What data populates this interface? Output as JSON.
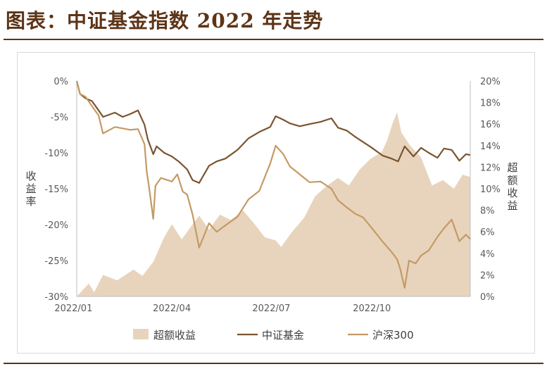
{
  "header": {
    "title": "图表：中证基金指数 2022 年走势"
  },
  "chart_data": {
    "type": "line",
    "title": "图表：中证基金指数 2022 年走势",
    "ylabel_left": "收益率",
    "ylabel_right": "超额收益",
    "x_ticks": [
      "2022/01",
      "2022/04",
      "2022/07",
      "2022/10"
    ],
    "x_range": [
      "2022-01-04",
      "2022-12-30"
    ],
    "ylim_left": [
      -30,
      0
    ],
    "ylim_right": [
      0,
      20
    ],
    "y_ticks_left": [
      "0%",
      "-5%",
      "-10%",
      "-15%",
      "-20%",
      "-25%",
      "-30%"
    ],
    "y_ticks_right": [
      "20%",
      "18%",
      "16%",
      "14%",
      "12%",
      "10%",
      "8%",
      "6%",
      "4%",
      "2%",
      "0%"
    ],
    "legend_position": "bottom",
    "colors": {
      "excess": "#e8d4bd",
      "fund": "#7a5430",
      "csi300": "#c49a64"
    },
    "series": [
      {
        "name": "超额收益",
        "kind": "area",
        "axis": "right",
        "points": [
          [
            "2022-01-04",
            0.0
          ],
          [
            "2022-01-15",
            1.2
          ],
          [
            "2022-01-20",
            0.4
          ],
          [
            "2022-01-28",
            2.0
          ],
          [
            "2022-02-10",
            1.5
          ],
          [
            "2022-02-25",
            2.5
          ],
          [
            "2022-03-05",
            1.9
          ],
          [
            "2022-03-15",
            3.2
          ],
          [
            "2022-03-25",
            5.5
          ],
          [
            "2022-04-01",
            6.7
          ],
          [
            "2022-04-10",
            5.3
          ],
          [
            "2022-04-20",
            6.7
          ],
          [
            "2022-04-26",
            7.5
          ],
          [
            "2022-05-05",
            6.2
          ],
          [
            "2022-05-15",
            7.6
          ],
          [
            "2022-05-25",
            7.1
          ],
          [
            "2022-06-05",
            8.0
          ],
          [
            "2022-06-15",
            6.8
          ],
          [
            "2022-06-25",
            5.5
          ],
          [
            "2022-07-05",
            5.2
          ],
          [
            "2022-07-10",
            4.6
          ],
          [
            "2022-07-20",
            6.0
          ],
          [
            "2022-07-31",
            7.3
          ],
          [
            "2022-08-10",
            9.3
          ],
          [
            "2022-08-20",
            10.2
          ],
          [
            "2022-08-31",
            11.0
          ],
          [
            "2022-09-10",
            10.3
          ],
          [
            "2022-09-20",
            11.8
          ],
          [
            "2022-09-30",
            12.8
          ],
          [
            "2022-10-10",
            13.4
          ],
          [
            "2022-10-15",
            14.5
          ],
          [
            "2022-10-20",
            16.1
          ],
          [
            "2022-10-24",
            17.1
          ],
          [
            "2022-10-28",
            15.2
          ],
          [
            "2022-11-05",
            14.0
          ],
          [
            "2022-11-15",
            12.9
          ],
          [
            "2022-11-25",
            10.3
          ],
          [
            "2022-12-05",
            10.8
          ],
          [
            "2022-12-15",
            10.0
          ],
          [
            "2022-12-23",
            11.3
          ],
          [
            "2022-12-30",
            11.1
          ]
        ]
      },
      {
        "name": "中证基金",
        "kind": "line",
        "axis": "left",
        "points": [
          [
            "2022-01-04",
            0.0
          ],
          [
            "2022-01-07",
            -1.8
          ],
          [
            "2022-01-12",
            -2.4
          ],
          [
            "2022-01-18",
            -2.8
          ],
          [
            "2022-01-24",
            -4.1
          ],
          [
            "2022-01-28",
            -5.0
          ],
          [
            "2022-02-08",
            -4.4
          ],
          [
            "2022-02-15",
            -5.0
          ],
          [
            "2022-02-22",
            -4.6
          ],
          [
            "2022-03-01",
            -4.1
          ],
          [
            "2022-03-07",
            -6.1
          ],
          [
            "2022-03-10",
            -8.1
          ],
          [
            "2022-03-15",
            -10.2
          ],
          [
            "2022-03-18",
            -9.1
          ],
          [
            "2022-03-25",
            -10.0
          ],
          [
            "2022-04-01",
            -10.5
          ],
          [
            "2022-04-08",
            -11.3
          ],
          [
            "2022-04-15",
            -12.3
          ],
          [
            "2022-04-20",
            -13.8
          ],
          [
            "2022-04-26",
            -14.2
          ],
          [
            "2022-05-05",
            -11.8
          ],
          [
            "2022-05-12",
            -11.2
          ],
          [
            "2022-05-20",
            -10.8
          ],
          [
            "2022-05-31",
            -9.6
          ],
          [
            "2022-06-10",
            -8.0
          ],
          [
            "2022-06-20",
            -7.1
          ],
          [
            "2022-06-30",
            -6.4
          ],
          [
            "2022-07-05",
            -4.9
          ],
          [
            "2022-07-12",
            -5.4
          ],
          [
            "2022-07-18",
            -5.9
          ],
          [
            "2022-07-27",
            -6.3
          ],
          [
            "2022-08-05",
            -6.0
          ],
          [
            "2022-08-15",
            -5.7
          ],
          [
            "2022-08-25",
            -5.2
          ],
          [
            "2022-08-31",
            -6.5
          ],
          [
            "2022-09-08",
            -6.9
          ],
          [
            "2022-09-16",
            -7.8
          ],
          [
            "2022-09-23",
            -8.5
          ],
          [
            "2022-09-30",
            -9.2
          ],
          [
            "2022-10-11",
            -10.4
          ],
          [
            "2022-10-19",
            -10.8
          ],
          [
            "2022-10-25",
            -11.2
          ],
          [
            "2022-10-31",
            -9.1
          ],
          [
            "2022-11-08",
            -10.5
          ],
          [
            "2022-11-15",
            -9.3
          ],
          [
            "2022-11-22",
            -10.0
          ],
          [
            "2022-11-30",
            -10.7
          ],
          [
            "2022-12-06",
            -9.4
          ],
          [
            "2022-12-13",
            -9.6
          ],
          [
            "2022-12-20",
            -11.1
          ],
          [
            "2022-12-26",
            -10.2
          ],
          [
            "2022-12-30",
            -10.3
          ]
        ]
      },
      {
        "name": "沪深300",
        "kind": "line",
        "axis": "left",
        "points": [
          [
            "2022-01-04",
            0.0
          ],
          [
            "2022-01-07",
            -1.8
          ],
          [
            "2022-01-12",
            -2.2
          ],
          [
            "2022-01-18",
            -3.5
          ],
          [
            "2022-01-24",
            -4.8
          ],
          [
            "2022-01-28",
            -7.3
          ],
          [
            "2022-02-08",
            -6.4
          ],
          [
            "2022-02-15",
            -6.6
          ],
          [
            "2022-02-22",
            -6.8
          ],
          [
            "2022-03-01",
            -6.7
          ],
          [
            "2022-03-07",
            -8.8
          ],
          [
            "2022-03-09",
            -12.6
          ],
          [
            "2022-03-11",
            -14.6
          ],
          [
            "2022-03-15",
            -19.2
          ],
          [
            "2022-03-17",
            -14.6
          ],
          [
            "2022-03-22",
            -13.5
          ],
          [
            "2022-04-01",
            -14.0
          ],
          [
            "2022-04-06",
            -13.0
          ],
          [
            "2022-04-11",
            -15.4
          ],
          [
            "2022-04-15",
            -15.8
          ],
          [
            "2022-04-20",
            -18.6
          ],
          [
            "2022-04-26",
            -23.2
          ],
          [
            "2022-05-05",
            -19.8
          ],
          [
            "2022-05-12",
            -21.0
          ],
          [
            "2022-05-20",
            -20.1
          ],
          [
            "2022-05-31",
            -18.9
          ],
          [
            "2022-06-10",
            -16.5
          ],
          [
            "2022-06-20",
            -15.3
          ],
          [
            "2022-06-30",
            -11.5
          ],
          [
            "2022-07-05",
            -9.0
          ],
          [
            "2022-07-12",
            -10.2
          ],
          [
            "2022-07-18",
            -11.9
          ],
          [
            "2022-07-27",
            -13.0
          ],
          [
            "2022-08-05",
            -14.1
          ],
          [
            "2022-08-15",
            -14.0
          ],
          [
            "2022-08-25",
            -15.0
          ],
          [
            "2022-08-31",
            -16.6
          ],
          [
            "2022-09-08",
            -17.6
          ],
          [
            "2022-09-16",
            -18.5
          ],
          [
            "2022-09-23",
            -19.0
          ],
          [
            "2022-09-30",
            -20.3
          ],
          [
            "2022-10-11",
            -22.4
          ],
          [
            "2022-10-19",
            -23.8
          ],
          [
            "2022-10-24",
            -24.8
          ],
          [
            "2022-10-27",
            -26.2
          ],
          [
            "2022-10-31",
            -28.8
          ],
          [
            "2022-11-04",
            -25.0
          ],
          [
            "2022-11-10",
            -25.4
          ],
          [
            "2022-11-15",
            -24.3
          ],
          [
            "2022-11-22",
            -23.6
          ],
          [
            "2022-11-30",
            -21.7
          ],
          [
            "2022-12-06",
            -20.5
          ],
          [
            "2022-12-13",
            -19.3
          ],
          [
            "2022-12-20",
            -22.3
          ],
          [
            "2022-12-26",
            -21.4
          ],
          [
            "2022-12-30",
            -22.0
          ]
        ]
      }
    ]
  }
}
